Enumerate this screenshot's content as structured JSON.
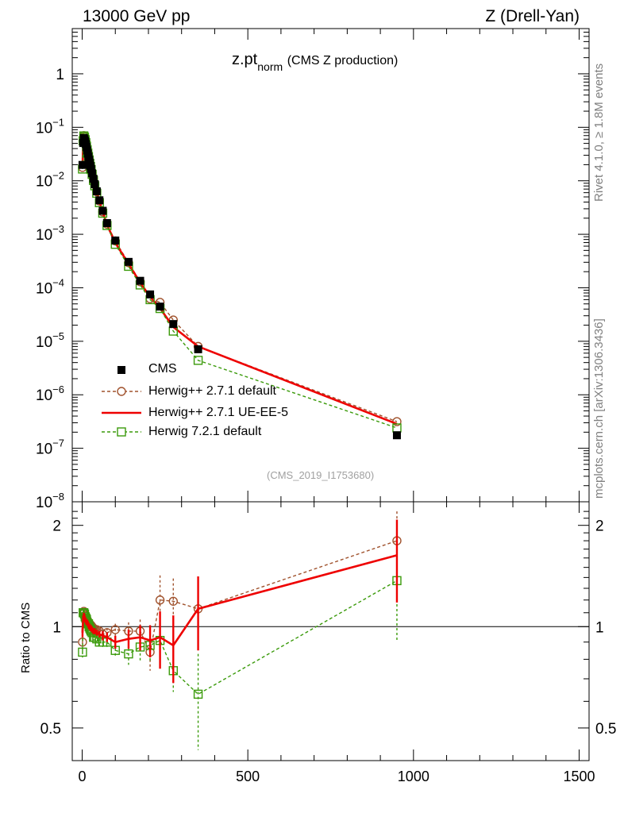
{
  "header": {
    "left": "13000 GeV pp",
    "right": "Z (Drell-Yan)",
    "side_top": "Rivet 4.1.0, ≥ 1.8M events",
    "side_bottom": "mcplots.cern.ch [arXiv:1306.3436]"
  },
  "colors": {
    "cms": "#000000",
    "herwigpp_default": "#a0522d",
    "herwigpp_ueee5": "#ee0000",
    "herwig721": "#3a9a0a"
  },
  "chart_data": [
    {
      "type": "line",
      "title": "z.pt",
      "title_sub": "norm",
      "title_suffix": "(CMS Z production)",
      "tag": "(CMS_2019_I1753680)",
      "xlabel": "",
      "ylabel": "",
      "yscale": "log",
      "xlim": [
        -30,
        1530
      ],
      "ylim": [
        1e-08,
        7
      ],
      "ytick_labels": [
        {
          "value": 1,
          "base": "1",
          "exp": ""
        },
        {
          "value": 0.1,
          "base": "10",
          "exp": "−1"
        },
        {
          "value": 0.01,
          "base": "10",
          "exp": "−2"
        },
        {
          "value": 0.001,
          "base": "10",
          "exp": "−3"
        },
        {
          "value": 0.0001,
          "base": "10",
          "exp": "−4"
        },
        {
          "value": 1e-05,
          "base": "10",
          "exp": "−5"
        },
        {
          "value": 1e-06,
          "base": "10",
          "exp": "−6"
        },
        {
          "value": 1e-07,
          "base": "10",
          "exp": "−7"
        },
        {
          "value": 1e-08,
          "base": "10",
          "exp": "−8"
        }
      ],
      "x": [
        1,
        3,
        5,
        7,
        9,
        11,
        13,
        15,
        17,
        19,
        21,
        23,
        25,
        27,
        30,
        34,
        38,
        44,
        52,
        62,
        75,
        100,
        140,
        175,
        205,
        235,
        275,
        350,
        950
      ],
      "series": [
        {
          "name": "CMS",
          "key": "cms",
          "marker": "filled-square",
          "values": [
            0.0198,
            0.0509,
            0.0629,
            0.0598,
            0.0548,
            0.0487,
            0.0425,
            0.037,
            0.0322,
            0.028,
            0.0245,
            0.0214,
            0.0188,
            0.0166,
            0.0138,
            0.0109,
            0.00865,
            0.00637,
            0.00432,
            0.00275,
            0.00162,
            0.000765,
            0.000305,
            0.000135,
            7.52e-05,
            4.45e-05,
            2.1e-05,
            7.1e-06,
            1.75e-07
          ]
        },
        {
          "name": "Herwig++ 2.7.1 default",
          "key": "herwigpp_default",
          "marker": "open-circle",
          "dash": true,
          "values": [
            0.0178,
            0.056,
            0.07,
            0.066,
            0.059,
            0.052,
            0.045,
            0.039,
            0.0335,
            0.029,
            0.025,
            0.0218,
            0.019,
            0.0167,
            0.0138,
            0.0108,
            0.0085,
            0.00625,
            0.0042,
            0.00262,
            0.00155,
            0.00075,
            0.000295,
            0.00013,
            6.25e-05,
            5.35e-05,
            2.5e-05,
            8e-06,
            3.15e-07
          ],
          "ratio": [
            0.9,
            1.1,
            1.11,
            1.1,
            1.08,
            1.07,
            1.06,
            1.05,
            1.04,
            1.03,
            1.02,
            1.02,
            1.01,
            1.01,
            1.0,
            0.99,
            0.98,
            0.98,
            0.97,
            0.95,
            0.96,
            0.98,
            0.97,
            0.97,
            0.84,
            1.2,
            1.19,
            1.13,
            1.8
          ],
          "ratio_err": [
            0.03,
            0.02,
            0.02,
            0.02,
            0.02,
            0.02,
            0.02,
            0.02,
            0.02,
            0.02,
            0.02,
            0.02,
            0.02,
            0.02,
            0.02,
            0.02,
            0.02,
            0.02,
            0.02,
            0.03,
            0.03,
            0.04,
            0.06,
            0.08,
            0.1,
            0.22,
            0.2,
            0.25,
            0.4
          ]
        },
        {
          "name": "Herwig++ 2.7.1 UE-EE-5",
          "key": "herwigpp_ueee5",
          "marker": "none",
          "dash": false,
          "values": [
            0.019,
            0.054,
            0.068,
            0.064,
            0.0575,
            0.0505,
            0.044,
            0.038,
            0.0328,
            0.0284,
            0.0246,
            0.0214,
            0.0186,
            0.0164,
            0.0136,
            0.0106,
            0.00836,
            0.00613,
            0.00412,
            0.00258,
            0.0015,
            0.000692,
            0.00028,
            0.000125,
            6.8e-05,
            4.15e-05,
            1.85e-05,
            8e-06,
            2.85e-07
          ],
          "ratio": [
            0.96,
            1.06,
            1.08,
            1.07,
            1.05,
            1.04,
            1.03,
            1.03,
            1.02,
            1.01,
            1.0,
            1.0,
            0.99,
            0.99,
            0.98,
            0.97,
            0.97,
            0.96,
            0.95,
            0.94,
            0.93,
            0.9,
            0.92,
            0.93,
            0.91,
            0.93,
            0.88,
            1.13,
            1.63
          ],
          "ratio_err": [
            0.03,
            0.02,
            0.02,
            0.02,
            0.02,
            0.02,
            0.02,
            0.02,
            0.02,
            0.02,
            0.02,
            0.02,
            0.02,
            0.02,
            0.02,
            0.02,
            0.02,
            0.02,
            0.02,
            0.03,
            0.03,
            0.04,
            0.06,
            0.08,
            0.1,
            0.18,
            0.2,
            0.28,
            0.45
          ]
        },
        {
          "name": "Herwig 7.2.1 default",
          "key": "herwig721",
          "marker": "open-square",
          "dash": true,
          "values": [
            0.0166,
            0.056,
            0.069,
            0.065,
            0.0585,
            0.0515,
            0.0445,
            0.0382,
            0.033,
            0.0285,
            0.0246,
            0.0213,
            0.0185,
            0.0162,
            0.0132,
            0.0102,
            0.00805,
            0.00585,
            0.0039,
            0.00248,
            0.00146,
            0.00065,
            0.000252,
            0.000113,
            6e-05,
            4.1e-05,
            1.55e-05,
            4.4e-06,
            2.4e-07
          ],
          "ratio": [
            0.84,
            1.1,
            1.1,
            1.09,
            1.07,
            1.06,
            1.05,
            1.03,
            1.02,
            1.02,
            1.0,
            0.99,
            0.98,
            0.97,
            0.96,
            0.93,
            0.93,
            0.92,
            0.9,
            0.9,
            0.9,
            0.85,
            0.83,
            0.87,
            0.88,
            0.91,
            0.74,
            0.63,
            1.37
          ],
          "ratio_err": [
            0.03,
            0.02,
            0.02,
            0.02,
            0.02,
            0.02,
            0.02,
            0.02,
            0.02,
            0.02,
            0.02,
            0.02,
            0.02,
            0.02,
            0.02,
            0.02,
            0.02,
            0.02,
            0.02,
            0.03,
            0.03,
            0.04,
            0.06,
            0.08,
            0.1,
            0.15,
            0.1,
            0.2,
            0.47
          ]
        }
      ],
      "legend": {
        "placement": "lower-left"
      }
    },
    {
      "type": "line",
      "title": "",
      "ylabel": "Ratio to CMS",
      "yscale": "log",
      "ylim": [
        0.4,
        2.35
      ],
      "xlim": [
        -30,
        1530
      ],
      "reference_line": 1,
      "ytick_labels_left": [
        "2",
        "1",
        "0.5"
      ],
      "ytick_labels_right": [
        "2",
        "1",
        "0.5"
      ],
      "ytick_values": [
        2,
        1,
        0.5
      ],
      "xtick_labels": [
        "0",
        "500",
        "1000",
        "1500"
      ],
      "xtick_values": [
        0,
        500,
        1000,
        1500
      ]
    }
  ]
}
